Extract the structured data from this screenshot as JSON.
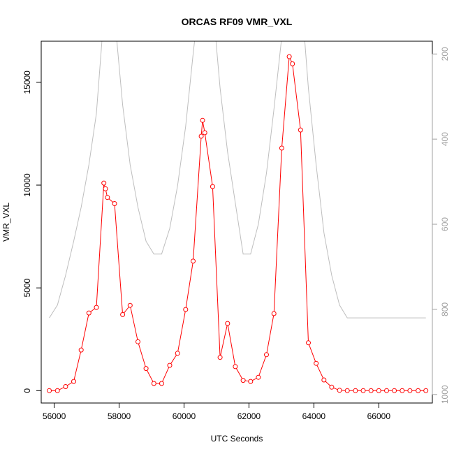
{
  "chart_data": {
    "type": "line",
    "title": "ORCAS RF09 VMR_VXL",
    "xlabel": "UTC Seconds",
    "ylabel": "VMR_VXL",
    "xlim": [
      55600,
      67650
    ],
    "ylim": [
      -600,
      17000
    ],
    "x_ticks": [
      56000,
      58000,
      60000,
      62000,
      64000,
      66000
    ],
    "y_ticks": [
      0,
      5000,
      10000,
      15000
    ],
    "x_tick_labels": [
      "56000",
      "58000",
      "60000",
      "62000",
      "64000",
      "66000"
    ],
    "y_tick_labels": [
      "0",
      "5000",
      "10000",
      "15000"
    ],
    "y2_ticks": [
      200,
      400,
      600,
      800,
      1000
    ],
    "y2_tick_labels": [
      "200",
      "400",
      "600",
      "800",
      "1000"
    ],
    "grid": false,
    "series": [
      {
        "axis": "left",
        "color": "#ff0000",
        "style": "line-and-open-circles",
        "x": [
          55850,
          56100,
          56350,
          56600,
          56830,
          57070,
          57300,
          57530,
          57580,
          57640,
          57860,
          58110,
          58340,
          58580,
          58830,
          59070,
          59310,
          59560,
          59800,
          60050,
          60280,
          60530,
          60570,
          60640,
          60880,
          61110,
          61340,
          61580,
          61820,
          62050,
          62290,
          62540,
          62770,
          63010,
          63240,
          63340,
          63590,
          63830,
          64070,
          64310,
          64550,
          64790,
          65030,
          65280,
          65520,
          65760,
          66000,
          66240,
          66480,
          66720,
          66960,
          67210,
          67450
        ],
        "y": [
          0,
          0,
          200,
          450,
          1980,
          3780,
          4050,
          10100,
          9820,
          9400,
          9100,
          3700,
          4150,
          2380,
          1080,
          350,
          350,
          1230,
          1820,
          3950,
          6300,
          12380,
          13150,
          12550,
          9930,
          1620,
          3270,
          1170,
          500,
          450,
          650,
          1750,
          3750,
          11800,
          16250,
          15900,
          12680,
          2330,
          1330,
          520,
          170,
          20,
          0,
          0,
          0,
          0,
          0,
          0,
          0,
          0,
          0,
          0,
          0
        ]
      },
      {
        "axis": "right",
        "color": "#bebebe",
        "style": "line",
        "y2_reversed": true,
        "y2_lim": [
          1020,
          170
        ],
        "x": [
          55850,
          56100,
          56350,
          56600,
          56830,
          57070,
          57300,
          57530,
          57860,
          58110,
          58340,
          58580,
          58830,
          59070,
          59310,
          59560,
          59800,
          60050,
          60280,
          60530,
          60880,
          61110,
          61340,
          61580,
          61820,
          62050,
          62290,
          62540,
          62770,
          63010,
          63240,
          63590,
          63830,
          64070,
          64310,
          64550,
          64790,
          65030,
          65280,
          65520,
          65760,
          66000,
          66240,
          66480,
          66720,
          66960,
          67210,
          67450
        ],
        "y": [
          820,
          790,
          720,
          640,
          560,
          460,
          340,
          110,
          110,
          320,
          460,
          560,
          640,
          670,
          670,
          610,
          510,
          370,
          200,
          30,
          80,
          280,
          430,
          550,
          670,
          670,
          600,
          480,
          330,
          160,
          40,
          40,
          280,
          460,
          620,
          720,
          790,
          820,
          820,
          820,
          820,
          820,
          820,
          820,
          820,
          820,
          820,
          820
        ]
      }
    ]
  }
}
